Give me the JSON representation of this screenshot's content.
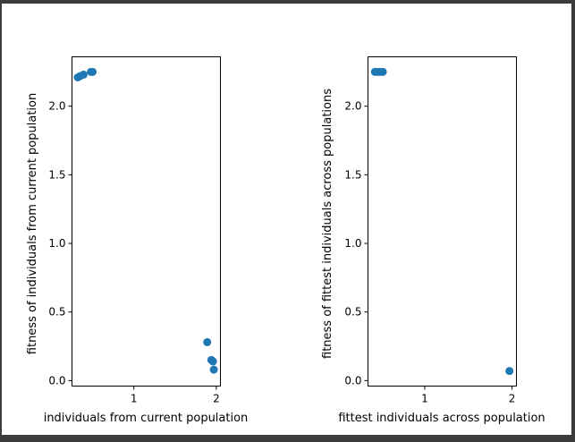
{
  "chart_data": [
    {
      "type": "scatter",
      "title": "",
      "xlabel": "individuals from current population",
      "ylabel": "fitness of individuals from current population",
      "xlim": [
        0.25,
        2.05
      ],
      "ylim": [
        -0.04,
        2.36
      ],
      "xticks": [
        1,
        2
      ],
      "xtick_labels": [
        "1",
        "2"
      ],
      "yticks": [
        0.0,
        0.5,
        1.0,
        1.5,
        2.0
      ],
      "ytick_labels": [
        "0.0",
        "0.5",
        "1.0",
        "1.5",
        "2.0"
      ],
      "grid": false,
      "color": "#1f77b4",
      "series": [
        {
          "name": "current population",
          "x": [
            0.32,
            0.35,
            0.39,
            0.48,
            0.5,
            1.89,
            1.94,
            1.96,
            1.97
          ],
          "y": [
            2.21,
            2.22,
            2.23,
            2.25,
            2.25,
            0.28,
            0.15,
            0.14,
            0.08
          ]
        }
      ]
    },
    {
      "type": "scatter",
      "title": "",
      "xlabel": "fittest individuals across population",
      "ylabel": "fitness of fittest individuals across populations",
      "xlim": [
        0.35,
        2.05
      ],
      "ylim": [
        -0.04,
        2.36
      ],
      "xticks": [
        1,
        2
      ],
      "xtick_labels": [
        "1",
        "2"
      ],
      "yticks": [
        0.0,
        0.5,
        1.0,
        1.5,
        2.0
      ],
      "ytick_labels": [
        "0.0",
        "0.5",
        "1.0",
        "1.5",
        "2.0"
      ],
      "grid": false,
      "color": "#1f77b4",
      "series": [
        {
          "name": "fittest individuals",
          "x": [
            0.43,
            0.46,
            0.49,
            0.52,
            1.97
          ],
          "y": [
            2.25,
            2.25,
            2.25,
            2.25,
            0.07
          ]
        }
      ]
    }
  ]
}
